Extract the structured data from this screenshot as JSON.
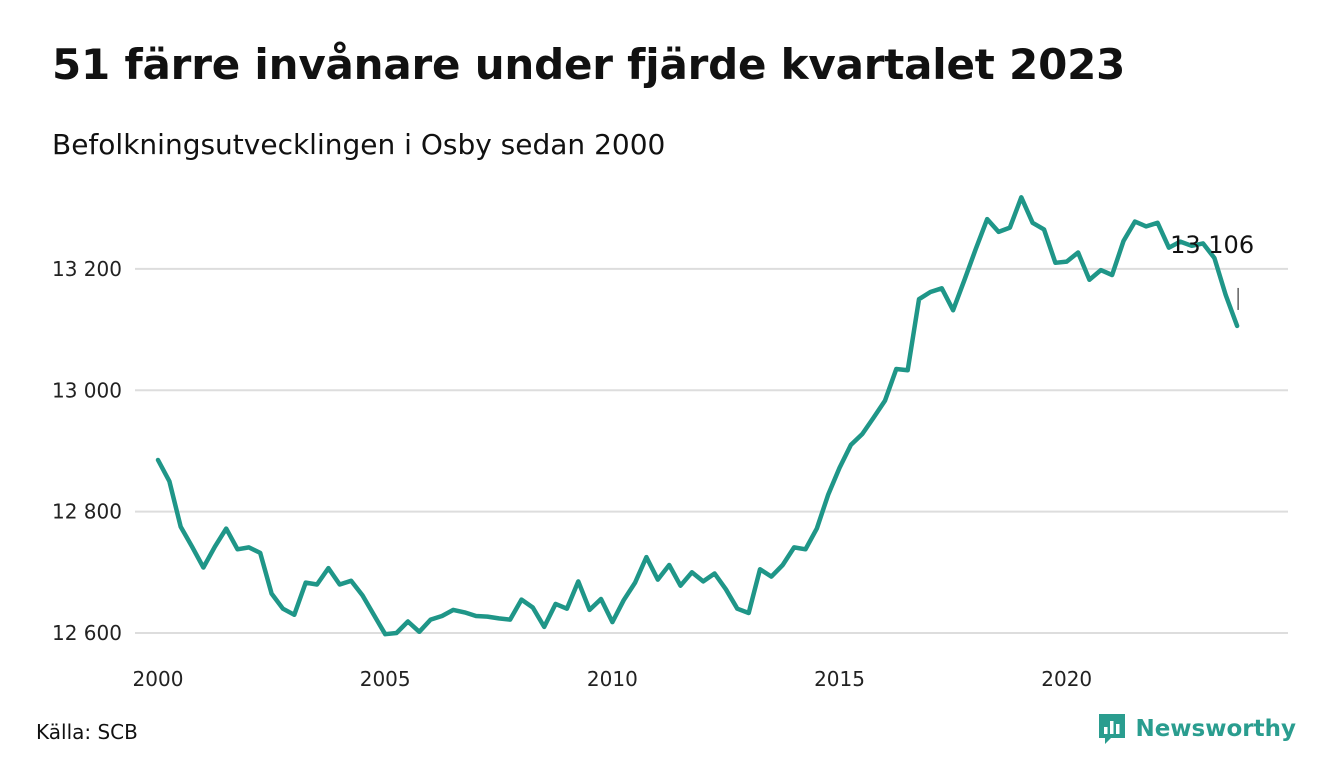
{
  "title": "51 färre invånare under fjärde kvartalet 2023",
  "subtitle": "Befolkningsutvecklingen i Osby sedan 2000",
  "source": "Källa: SCB",
  "brand": {
    "name": "Newsworthy",
    "color": "#2a9d8f",
    "icon": "bar-chart-logo-icon"
  },
  "chart_data": {
    "type": "line",
    "series": [
      {
        "color": "#1f9688",
        "values": [
          12885,
          12850,
          12775,
          12742,
          12708,
          12742,
          12772,
          12738,
          12741,
          12732,
          12665,
          12640,
          12630,
          12683,
          12680,
          12707,
          12680,
          12686,
          12662,
          12630,
          12598,
          12600,
          12619,
          12602,
          12622,
          12628,
          12638,
          12634,
          12628,
          12627,
          12624,
          12622,
          12655,
          12642,
          12610,
          12648,
          12640,
          12685,
          12638,
          12656,
          12618,
          12654,
          12683,
          12725,
          12688,
          12712,
          12678,
          12700,
          12685,
          12698,
          12672,
          12640,
          12633,
          12705,
          12693,
          12712,
          12741,
          12738,
          12772,
          12828,
          12872,
          12910,
          12928,
          12955,
          12983,
          13035,
          13033,
          13150,
          13162,
          13168,
          13132,
          13182,
          13233,
          13282,
          13261,
          13268,
          13318,
          13276,
          13265,
          13210,
          13212,
          13227,
          13182,
          13198,
          13190,
          13246,
          13278,
          13270,
          13276,
          13235,
          13245,
          13238,
          13242,
          13218,
          13157,
          13106
        ]
      }
    ],
    "x_start": 2000,
    "x_step": 0.25,
    "ylim": [
      12600,
      13330
    ],
    "xlim": [
      2000,
      2024.1
    ],
    "y_ticks": [
      12600,
      12800,
      13000,
      13200
    ],
    "y_tick_labels": [
      "12 600",
      "12 800",
      "13 000",
      "13 200"
    ],
    "x_ticks": [
      2000,
      2005,
      2010,
      2015,
      2020
    ],
    "x_tick_labels": [
      "2000",
      "2005",
      "2010",
      "2015",
      "2020"
    ],
    "end_label": "13 106",
    "grid": "horizontal",
    "legend": "none",
    "gridline_color": "#dddddd"
  }
}
